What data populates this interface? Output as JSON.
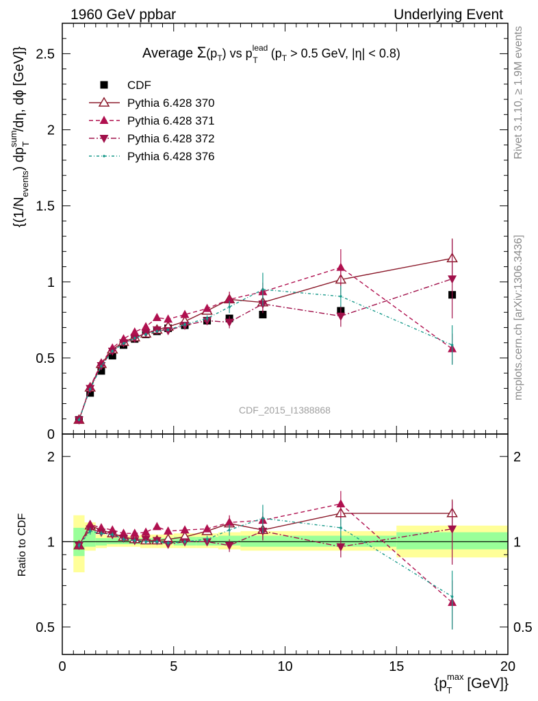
{
  "header": {
    "left": "1960 GeV ppbar",
    "right": "Underlying Event"
  },
  "title": {
    "prefix": "Average ",
    "sigma": "Σ",
    "sigma_arg_open": "(p",
    "sigma_arg_sub": "T",
    "sigma_arg_close": ")",
    "mid": " vs p",
    "sup": "lead",
    "sub": "T",
    "rest": " (p",
    "rest_sub": "T",
    "rest_tail": " > 0.5 GeV, |η| < 0.8)"
  },
  "side_text": {
    "rivet": "Rivet 3.1.10, ≥ 1.9M events",
    "mcplots": "mcplots.cern.ch [arXiv:1306.3436]"
  },
  "watermark": "CDF_2015_I1388868",
  "ylabel_main": {
    "p1": "{(1/N",
    "p1_sub": "events",
    "p2": ") dp",
    "p2_sup": "sum",
    "p2_sub": "T",
    "p3": "/dη, dϕ [GeV]}"
  },
  "ylabel_ratio": "Ratio to CDF",
  "xlabel": {
    "p1": "{p",
    "sup": "max",
    "sub": "T",
    "p2": " [GeV]}"
  },
  "main_ticks": {
    "y": [
      "0",
      "0.5",
      "1",
      "1.5",
      "2",
      "2.5"
    ]
  },
  "ratio_ticks": {
    "y": [
      "0.5",
      "1",
      "2"
    ]
  },
  "x_ticks": [
    "0",
    "5",
    "10",
    "15",
    "20"
  ],
  "colors": {
    "cdf": "#000000",
    "p370": "#8b1a2b",
    "p371": "#b0104f",
    "p372": "#a0104a",
    "p376": "#17998a",
    "band_yellow": "#ffff99",
    "band_green": "#99ff99"
  },
  "chart_data": [
    {
      "type": "scatter",
      "xlim": [
        0,
        20
      ],
      "ylim": [
        0,
        2.7
      ],
      "x": [
        0.75,
        1.25,
        1.75,
        2.25,
        2.75,
        3.25,
        3.75,
        4.25,
        4.75,
        5.5,
        6.5,
        7.5,
        9.0,
        12.5,
        17.5
      ],
      "series": [
        {
          "name": "CDF",
          "marker": "square",
          "values": [
            0.093,
            0.27,
            0.415,
            0.515,
            0.585,
            0.625,
            0.655,
            0.675,
            0.695,
            0.715,
            0.745,
            0.76,
            0.785,
            0.81,
            0.915
          ]
        },
        {
          "name": "Pythia 6.428 370",
          "marker": "triangle-open",
          "values": [
            0.093,
            0.305,
            0.46,
            0.555,
            0.605,
            0.635,
            0.66,
            0.685,
            0.705,
            0.74,
            0.81,
            0.885,
            0.865,
            1.015,
            1.155
          ],
          "err": [
            0.005,
            0.01,
            0.01,
            0.01,
            0.01,
            0.01,
            0.01,
            0.01,
            0.01,
            0.015,
            0.02,
            0.05,
            0.06,
            0.1,
            0.13
          ]
        },
        {
          "name": "Pythia 6.428 371",
          "marker": "triangle",
          "values": [
            0.093,
            0.31,
            0.465,
            0.565,
            0.625,
            0.67,
            0.705,
            0.765,
            0.755,
            0.785,
            0.825,
            0.885,
            0.935,
            1.095,
            0.56
          ],
          "err": [
            0.005,
            0.01,
            0.01,
            0.01,
            0.01,
            0.01,
            0.015,
            0.015,
            0.015,
            0.015,
            0.02,
            0.05,
            0.06,
            0.12,
            0.1
          ]
        },
        {
          "name": "Pythia 6.428 372",
          "marker": "triangle-down",
          "values": [
            0.093,
            0.3,
            0.45,
            0.545,
            0.6,
            0.63,
            0.665,
            0.685,
            0.68,
            0.715,
            0.745,
            0.735,
            0.855,
            0.775,
            1.02
          ],
          "err": [
            0.005,
            0.01,
            0.01,
            0.01,
            0.01,
            0.01,
            0.01,
            0.01,
            0.01,
            0.015,
            0.02,
            0.04,
            0.06,
            0.07,
            0.26
          ]
        },
        {
          "name": "Pythia 6.428 376",
          "marker": "dot",
          "values": [
            0.093,
            0.295,
            0.445,
            0.545,
            0.595,
            0.63,
            0.655,
            0.675,
            0.685,
            0.72,
            0.76,
            0.835,
            0.95,
            0.905,
            0.585
          ],
          "err": [
            0.005,
            0.01,
            0.01,
            0.01,
            0.01,
            0.01,
            0.01,
            0.01,
            0.01,
            0.015,
            0.02,
            0.04,
            0.11,
            0.07,
            0.13
          ]
        }
      ]
    },
    {
      "type": "scatter",
      "ylabel": "Ratio to CDF",
      "xlim": [
        0,
        20
      ],
      "ylim": [
        0.4,
        2.4
      ],
      "yscale": "log",
      "x": [
        0.75,
        1.25,
        1.75,
        2.25,
        2.75,
        3.25,
        3.75,
        4.25,
        4.75,
        5.5,
        6.5,
        7.5,
        9.0,
        12.5,
        17.5
      ],
      "bands": {
        "x_edges": [
          0.5,
          1.0,
          1.5,
          2.0,
          2.5,
          3.0,
          3.5,
          4.0,
          4.5,
          5.0,
          6.0,
          7.0,
          8.0,
          10.0,
          15.0,
          20.0
        ],
        "yellow_low": [
          0.78,
          0.93,
          0.95,
          0.96,
          0.96,
          0.96,
          0.95,
          0.95,
          0.95,
          0.95,
          0.95,
          0.94,
          0.93,
          0.93,
          0.88
        ],
        "yellow_high": [
          1.24,
          1.17,
          1.06,
          1.05,
          1.05,
          1.05,
          1.06,
          1.06,
          1.06,
          1.07,
          1.07,
          1.08,
          1.09,
          1.09,
          1.14
        ],
        "green_low": [
          0.89,
          0.96,
          0.97,
          0.98,
          0.98,
          0.98,
          0.98,
          0.98,
          0.98,
          0.97,
          0.97,
          0.97,
          0.96,
          0.96,
          0.94
        ],
        "green_high": [
          1.12,
          1.1,
          1.03,
          1.03,
          1.03,
          1.03,
          1.03,
          1.03,
          1.03,
          1.04,
          1.04,
          1.05,
          1.05,
          1.05,
          1.08
        ]
      },
      "series": [
        {
          "name": "Pythia 6.428 370",
          "marker": "triangle-open",
          "values": [
            0.97,
            1.14,
            1.1,
            1.07,
            1.04,
            1.02,
            1.01,
            1.01,
            1.02,
            1.04,
            1.09,
            1.16,
            1.1,
            1.26,
            1.26
          ],
          "err": [
            0.02,
            0.03,
            0.02,
            0.02,
            0.02,
            0.02,
            0.02,
            0.02,
            0.02,
            0.02,
            0.03,
            0.07,
            0.08,
            0.12,
            0.15
          ]
        },
        {
          "name": "Pythia 6.428 371",
          "marker": "triangle",
          "values": [
            0.97,
            1.15,
            1.12,
            1.1,
            1.07,
            1.07,
            1.08,
            1.13,
            1.09,
            1.1,
            1.11,
            1.17,
            1.19,
            1.36,
            0.61
          ],
          "err": [
            0.02,
            0.03,
            0.02,
            0.02,
            0.02,
            0.02,
            0.02,
            0.02,
            0.02,
            0.02,
            0.03,
            0.07,
            0.08,
            0.15,
            0.12
          ]
        },
        {
          "name": "Pythia 6.428 372",
          "marker": "triangle-down",
          "values": [
            0.97,
            1.11,
            1.08,
            1.06,
            1.03,
            1.01,
            1.02,
            1.01,
            0.98,
            1.0,
            1.0,
            0.97,
            1.09,
            0.96,
            1.11
          ],
          "err": [
            0.02,
            0.03,
            0.02,
            0.02,
            0.02,
            0.02,
            0.02,
            0.02,
            0.02,
            0.02,
            0.03,
            0.05,
            0.08,
            0.08,
            0.28
          ]
        },
        {
          "name": "Pythia 6.428 376",
          "marker": "dot",
          "values": [
            0.97,
            1.09,
            1.07,
            1.06,
            1.02,
            1.01,
            1.0,
            1.0,
            0.99,
            1.0,
            1.02,
            1.1,
            1.21,
            1.12,
            0.64
          ],
          "err": [
            0.02,
            0.03,
            0.02,
            0.02,
            0.02,
            0.02,
            0.02,
            0.02,
            0.02,
            0.02,
            0.03,
            0.05,
            0.14,
            0.09,
            0.15
          ]
        }
      ]
    }
  ]
}
